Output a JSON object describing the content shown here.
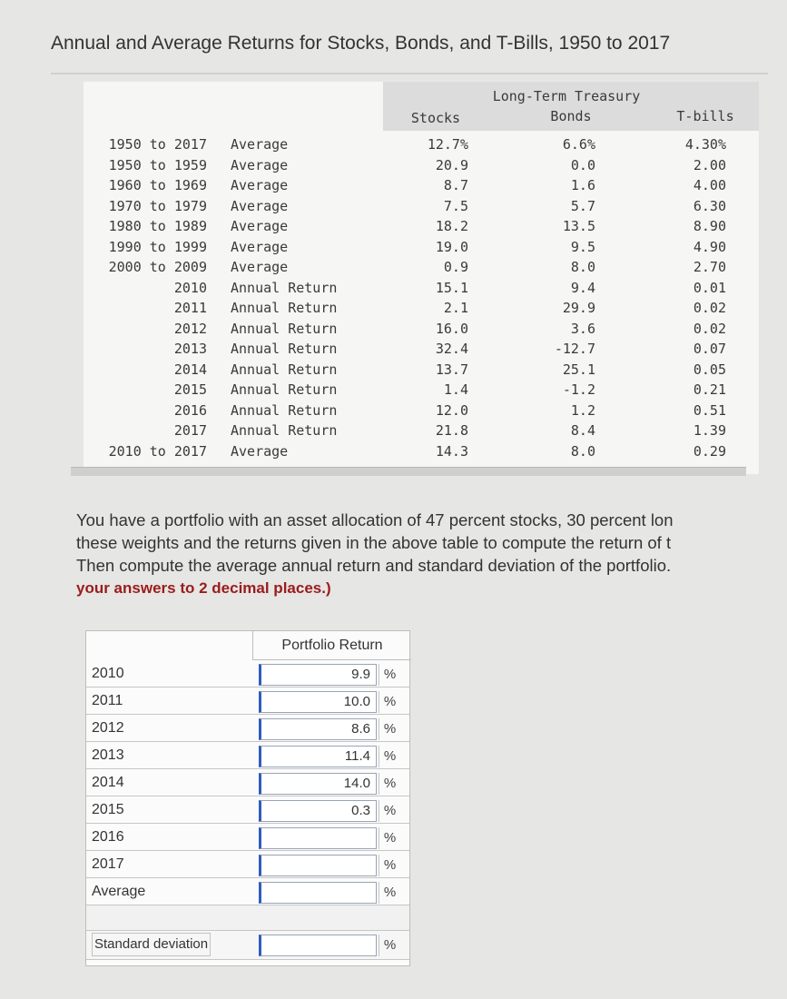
{
  "title": "Annual and Average Returns for Stocks, Bonds, and T-Bills, 1950 to 2017",
  "table": {
    "headers": {
      "stocks": "Stocks",
      "bonds_line1": "Long-Term Treasury",
      "bonds_line2": "Bonds",
      "tbills": "T-bills"
    },
    "rows": [
      {
        "period": "1950 to 2017",
        "type": "Average",
        "stocks": "12.7%",
        "bonds": "6.6%",
        "tbills": "4.30%"
      },
      {
        "period": "1950 to 1959",
        "type": "Average",
        "stocks": "20.9",
        "bonds": "0.0",
        "tbills": "2.00"
      },
      {
        "period": "1960 to 1969",
        "type": "Average",
        "stocks": "8.7",
        "bonds": "1.6",
        "tbills": "4.00"
      },
      {
        "period": "1970 to 1979",
        "type": "Average",
        "stocks": "7.5",
        "bonds": "5.7",
        "tbills": "6.30"
      },
      {
        "period": "1980 to 1989",
        "type": "Average",
        "stocks": "18.2",
        "bonds": "13.5",
        "tbills": "8.90"
      },
      {
        "period": "1990 to 1999",
        "type": "Average",
        "stocks": "19.0",
        "bonds": "9.5",
        "tbills": "4.90"
      },
      {
        "period": "2000 to 2009",
        "type": "Average",
        "stocks": "0.9",
        "bonds": "8.0",
        "tbills": "2.70"
      },
      {
        "period": "2010",
        "type": "Annual Return",
        "stocks": "15.1",
        "bonds": "9.4",
        "tbills": "0.01"
      },
      {
        "period": "2011",
        "type": "Annual Return",
        "stocks": "2.1",
        "bonds": "29.9",
        "tbills": "0.02"
      },
      {
        "period": "2012",
        "type": "Annual Return",
        "stocks": "16.0",
        "bonds": "3.6",
        "tbills": "0.02"
      },
      {
        "period": "2013",
        "type": "Annual Return",
        "stocks": "32.4",
        "bonds": "-12.7",
        "tbills": "0.07"
      },
      {
        "period": "2014",
        "type": "Annual Return",
        "stocks": "13.7",
        "bonds": "25.1",
        "tbills": "0.05"
      },
      {
        "period": "2015",
        "type": "Annual Return",
        "stocks": "1.4",
        "bonds": "-1.2",
        "tbills": "0.21"
      },
      {
        "period": "2016",
        "type": "Annual Return",
        "stocks": "12.0",
        "bonds": "1.2",
        "tbills": "0.51"
      },
      {
        "period": "2017",
        "type": "Annual Return",
        "stocks": "21.8",
        "bonds": "8.4",
        "tbills": "1.39"
      },
      {
        "period": "2010 to 2017",
        "type": "Average",
        "stocks": "14.3",
        "bonds": "8.0",
        "tbills": "0.29"
      }
    ]
  },
  "question": {
    "line1": "You have a portfolio with an asset allocation of 47 percent stocks, 30 percent lon",
    "line2": "these weights and the returns given in the above table to compute the return of t",
    "line3": "Then compute the average annual return and standard deviation of the portfolio.",
    "line4_emphasis": "your answers to 2 decimal places.)"
  },
  "answers": {
    "header": "Portfolio Return",
    "pct_symbol": "%",
    "rows": [
      {
        "label": "2010",
        "value": "9.9"
      },
      {
        "label": "2011",
        "value": "10.0"
      },
      {
        "label": "2012",
        "value": "8.6"
      },
      {
        "label": "2013",
        "value": "11.4"
      },
      {
        "label": "2014",
        "value": "14.0"
      },
      {
        "label": "2015",
        "value": "0.3"
      },
      {
        "label": "2016",
        "value": ""
      },
      {
        "label": "2017",
        "value": ""
      },
      {
        "label": "Average",
        "value": ""
      }
    ],
    "std_label": "Standard deviation",
    "std_value": ""
  }
}
